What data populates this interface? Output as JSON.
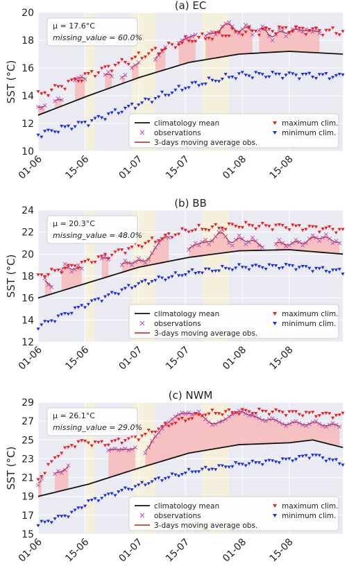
{
  "x_tick_labels": [
    "01-06",
    "15-06",
    "01-07",
    "15-07",
    "01-08",
    "15-08"
  ],
  "y_axis_label": "SST (°C)",
  "legend": {
    "clim_mean": "climatology mean",
    "observations": "observations",
    "moving_avg": "3-days moving average obs.",
    "max_clim": "maximum clim.",
    "min_clim": "minimum clim."
  },
  "colors": {
    "plot_bg": "#eaeaf2",
    "grid": "#ffffff",
    "shade_band": "#f4f0dc",
    "fill_heat": "#f6b8b8",
    "mean_line": "#111111",
    "max_marker": "#ee1c1c",
    "min_marker": "#1c2ee0",
    "obs_marker": "#b24bb2",
    "moving_avg_line": "#b22222"
  },
  "chart_data": [
    {
      "type": "line",
      "title": "(a) EC",
      "x_start_label": "01-06",
      "days": 92,
      "ylim": [
        10,
        20
      ],
      "yticks": [
        10,
        12,
        14,
        16,
        18,
        20
      ],
      "stat_mu": "μ = 17.6°C",
      "stat_missing": "missing_value = 60.0%",
      "shaded_day_ranges": [
        [
          14,
          17
        ],
        [
          28,
          35
        ],
        [
          49,
          57
        ]
      ],
      "mean_knots": [
        [
          0,
          12.6
        ],
        [
          15,
          14.0
        ],
        [
          30,
          15.3
        ],
        [
          45,
          16.4
        ],
        [
          60,
          17.0
        ],
        [
          75,
          17.2
        ],
        [
          91,
          17.0
        ]
      ],
      "max_knots": [
        [
          0,
          14.0
        ],
        [
          15,
          15.5
        ],
        [
          30,
          16.8
        ],
        [
          45,
          18.0
        ],
        [
          60,
          18.6
        ],
        [
          75,
          18.8
        ],
        [
          91,
          18.6
        ]
      ],
      "min_knots": [
        [
          0,
          11.2
        ],
        [
          15,
          12.1
        ],
        [
          30,
          13.4
        ],
        [
          45,
          14.7
        ],
        [
          60,
          15.5
        ],
        [
          75,
          15.5
        ],
        [
          91,
          15.4
        ]
      ],
      "obs_segments": [
        [
          [
            0,
            13.2
          ],
          [
            1,
            13.1
          ],
          [
            2,
            13.3
          ]
        ],
        [
          [
            5,
            13.6
          ],
          [
            6,
            13.8
          ],
          [
            7,
            13.7
          ]
        ],
        [
          [
            11,
            15.1
          ],
          [
            12,
            15.3
          ],
          [
            13,
            15.4
          ],
          [
            14,
            15.2
          ]
        ],
        [
          [
            20,
            15.5
          ],
          [
            21,
            15.7
          ],
          [
            22,
            15.4
          ]
        ],
        [
          [
            25,
            15.3
          ],
          [
            26,
            15.5
          ]
        ],
        [
          [
            28,
            16.0
          ],
          [
            29,
            16.2
          ],
          [
            30,
            16.4
          ]
        ],
        [
          [
            35,
            16.6
          ],
          [
            36,
            16.9
          ],
          [
            37,
            17.2
          ],
          [
            38,
            17.5
          ]
        ],
        [
          [
            42,
            17.8
          ],
          [
            43,
            18.0
          ],
          [
            44,
            18.1
          ],
          [
            45,
            18.2
          ],
          [
            46,
            18.3
          ],
          [
            47,
            18.4
          ]
        ],
        [
          [
            50,
            18.3
          ],
          [
            51,
            18.5
          ],
          [
            52,
            18.6
          ],
          [
            53,
            18.4
          ],
          [
            54,
            18.6
          ],
          [
            55,
            19.0
          ],
          [
            56,
            19.2
          ],
          [
            57,
            19.3
          ],
          [
            58,
            19.0
          ],
          [
            59,
            18.6
          ],
          [
            60,
            18.5
          ],
          [
            61,
            18.8
          ],
          [
            62,
            19.1
          ],
          [
            63,
            19.0
          ],
          [
            64,
            18.4
          ]
        ],
        [
          [
            66,
            18.7
          ],
          [
            67,
            19.0
          ],
          [
            68,
            18.8
          ],
          [
            69,
            18.3
          ],
          [
            70,
            18.0
          ],
          [
            71,
            18.4
          ],
          [
            72,
            18.8
          ],
          [
            73,
            18.7
          ],
          [
            74,
            18.3
          ],
          [
            75,
            18.5
          ],
          [
            76,
            18.8
          ],
          [
            77,
            18.9
          ],
          [
            78,
            18.7
          ],
          [
            79,
            18.6
          ],
          [
            80,
            18.8
          ],
          [
            81,
            18.7
          ],
          [
            82,
            18.6
          ],
          [
            83,
            18.8
          ],
          [
            84,
            18.5
          ]
        ]
      ]
    },
    {
      "type": "line",
      "title": "(b) BB",
      "x_start_label": "01-06",
      "days": 92,
      "ylim": [
        12,
        24
      ],
      "yticks": [
        12,
        14,
        16,
        18,
        20,
        22,
        24
      ],
      "stat_mu": "μ = 20.3°C",
      "stat_missing": "missing_value = 48.0%",
      "shaded_day_ranges": [
        [
          14,
          17
        ],
        [
          28,
          35
        ],
        [
          49,
          57
        ]
      ],
      "mean_knots": [
        [
          0,
          16.0
        ],
        [
          15,
          17.4
        ],
        [
          30,
          18.8
        ],
        [
          45,
          19.7
        ],
        [
          60,
          20.3
        ],
        [
          75,
          20.4
        ],
        [
          91,
          20.0
        ]
      ],
      "max_knots": [
        [
          0,
          18.0
        ],
        [
          15,
          19.3
        ],
        [
          30,
          20.8
        ],
        [
          45,
          22.2
        ],
        [
          60,
          22.6
        ],
        [
          75,
          22.5
        ],
        [
          91,
          22.2
        ]
      ],
      "min_knots": [
        [
          0,
          13.4
        ],
        [
          15,
          15.5
        ],
        [
          30,
          17.3
        ],
        [
          45,
          18.3
        ],
        [
          60,
          18.8
        ],
        [
          75,
          18.9
        ],
        [
          91,
          18.4
        ]
      ],
      "obs_segments": [
        [
          [
            2,
            17.8
          ],
          [
            3,
            17.2
          ],
          [
            4,
            17.0
          ]
        ],
        [
          [
            7,
            18.5
          ],
          [
            8,
            19.1
          ],
          [
            9,
            18.8
          ],
          [
            10,
            18.4
          ],
          [
            11,
            18.6
          ],
          [
            12,
            19.0
          ],
          [
            13,
            18.7
          ]
        ],
        [
          [
            19,
            19.6
          ],
          [
            20,
            19.8
          ],
          [
            21,
            19.5
          ]
        ],
        [
          [
            25,
            19.0
          ],
          [
            26,
            19.4
          ],
          [
            27,
            19.2
          ],
          [
            28,
            19.0
          ],
          [
            29,
            19.3
          ],
          [
            30,
            19.6
          ],
          [
            31,
            19.4
          ],
          [
            32,
            19.2
          ],
          [
            33,
            19.5
          ],
          [
            34,
            20.1
          ],
          [
            35,
            20.6
          ],
          [
            36,
            21.0
          ],
          [
            37,
            21.4
          ],
          [
            38,
            21.7
          ],
          [
            39,
            21.5
          ]
        ],
        [
          [
            45,
            20.4
          ],
          [
            46,
            20.7
          ],
          [
            47,
            21.0
          ],
          [
            48,
            20.8
          ],
          [
            49,
            21.1
          ],
          [
            50,
            21.3
          ],
          [
            51,
            20.9
          ],
          [
            52,
            21.2
          ],
          [
            53,
            21.6
          ],
          [
            54,
            22.0
          ],
          [
            55,
            22.2
          ],
          [
            56,
            21.6
          ],
          [
            57,
            21.0
          ],
          [
            58,
            20.8
          ],
          [
            59,
            21.3
          ],
          [
            60,
            21.7
          ],
          [
            61,
            21.4
          ],
          [
            62,
            20.9
          ],
          [
            63,
            21.1
          ],
          [
            64,
            21.5
          ],
          [
            65,
            21.2
          ],
          [
            66,
            20.8
          ],
          [
            67,
            20.6
          ]
        ],
        [
          [
            71,
            20.9
          ],
          [
            72,
            21.3
          ],
          [
            73,
            21.0
          ],
          [
            74,
            20.7
          ],
          [
            75,
            20.8
          ],
          [
            76,
            21.0
          ],
          [
            77,
            21.3
          ],
          [
            78,
            21.1
          ],
          [
            79,
            20.8
          ],
          [
            80,
            21.0
          ],
          [
            81,
            21.4
          ],
          [
            82,
            21.7
          ],
          [
            83,
            21.5
          ],
          [
            84,
            21.2
          ],
          [
            85,
            21.5
          ],
          [
            86,
            21.8
          ],
          [
            87,
            21.4
          ],
          [
            88,
            21.0
          ],
          [
            89,
            21.2
          ],
          [
            90,
            21.0
          ]
        ]
      ]
    },
    {
      "type": "line",
      "title": "(c) NWM",
      "x_start_label": "01-06",
      "days": 92,
      "ylim": [
        15,
        29
      ],
      "yticks": [
        15,
        17,
        19,
        21,
        23,
        25,
        27,
        29
      ],
      "stat_mu": "μ = 26.1°C",
      "stat_missing": "missing_value = 29.0%",
      "shaded_day_ranges": [
        [
          14,
          17
        ],
        [
          28,
          35
        ],
        [
          49,
          57
        ]
      ],
      "mean_knots": [
        [
          0,
          19.0
        ],
        [
          15,
          20.3
        ],
        [
          30,
          22.0
        ],
        [
          45,
          23.6
        ],
        [
          60,
          24.5
        ],
        [
          75,
          24.7
        ],
        [
          82,
          25.0
        ],
        [
          91,
          24.2
        ]
      ],
      "max_knots": [
        [
          0,
          20.8
        ],
        [
          6,
          23.5
        ],
        [
          12,
          24.8
        ],
        [
          20,
          24.6
        ],
        [
          30,
          25.3
        ],
        [
          40,
          26.8
        ],
        [
          50,
          27.8
        ],
        [
          60,
          28.0
        ],
        [
          70,
          28.0
        ],
        [
          80,
          27.8
        ],
        [
          91,
          27.6
        ]
      ],
      "min_knots": [
        [
          0,
          16.0
        ],
        [
          10,
          17.2
        ],
        [
          15,
          18.4
        ],
        [
          25,
          19.6
        ],
        [
          35,
          20.7
        ],
        [
          45,
          21.6
        ],
        [
          60,
          22.4
        ],
        [
          75,
          22.9
        ],
        [
          82,
          23.4
        ],
        [
          91,
          22.5
        ]
      ],
      "obs_segments": [
        [
          [
            0,
            20.2
          ],
          [
            1,
            20.9
          ]
        ],
        [
          [
            5,
            21.4
          ],
          [
            6,
            21.7
          ],
          [
            7,
            21.5
          ],
          [
            8,
            21.8
          ],
          [
            9,
            22.3
          ]
        ],
        [
          [
            21,
            23.9
          ],
          [
            22,
            24.0
          ],
          [
            23,
            24.1
          ],
          [
            24,
            23.9
          ],
          [
            25,
            24.0
          ],
          [
            26,
            24.1
          ],
          [
            27,
            23.9
          ],
          [
            28,
            24.0
          ],
          [
            29,
            24.2
          ]
        ],
        [
          [
            32,
            23.6
          ],
          [
            33,
            24.2
          ],
          [
            34,
            24.9
          ],
          [
            35,
            25.4
          ],
          [
            36,
            25.8
          ],
          [
            37,
            26.2
          ],
          [
            38,
            26.6
          ],
          [
            39,
            26.9
          ],
          [
            40,
            27.2
          ],
          [
            41,
            27.5
          ],
          [
            42,
            27.7
          ],
          [
            43,
            27.9
          ],
          [
            44,
            27.8
          ],
          [
            45,
            27.9
          ],
          [
            46,
            27.7
          ],
          [
            47,
            27.8
          ],
          [
            48,
            28.0
          ],
          [
            49,
            27.6
          ],
          [
            50,
            27.2
          ],
          [
            51,
            26.9
          ],
          [
            52,
            26.6
          ],
          [
            53,
            26.7
          ],
          [
            54,
            26.9
          ],
          [
            55,
            27.0
          ],
          [
            56,
            27.2
          ],
          [
            57,
            27.5
          ],
          [
            58,
            27.7
          ],
          [
            59,
            27.9
          ],
          [
            60,
            28.1
          ],
          [
            61,
            28.0
          ],
          [
            62,
            27.8
          ],
          [
            63,
            27.6
          ],
          [
            64,
            27.6
          ],
          [
            65,
            27.5
          ],
          [
            66,
            27.3
          ],
          [
            67,
            27.1
          ],
          [
            68,
            27.0
          ],
          [
            69,
            27.2
          ],
          [
            70,
            27.3
          ],
          [
            71,
            27.1
          ],
          [
            72,
            26.9
          ],
          [
            73,
            26.7
          ],
          [
            74,
            26.5
          ],
          [
            75,
            26.7
          ],
          [
            76,
            26.9
          ],
          [
            77,
            27.0
          ],
          [
            78,
            26.8
          ],
          [
            79,
            26.6
          ],
          [
            80,
            26.5
          ],
          [
            81,
            26.7
          ],
          [
            82,
            26.9
          ],
          [
            83,
            27.0
          ],
          [
            84,
            26.7
          ],
          [
            85,
            26.5
          ],
          [
            86,
            26.4
          ],
          [
            87,
            26.6
          ],
          [
            88,
            26.8
          ],
          [
            89,
            26.6
          ],
          [
            90,
            26.4
          ]
        ]
      ]
    }
  ]
}
